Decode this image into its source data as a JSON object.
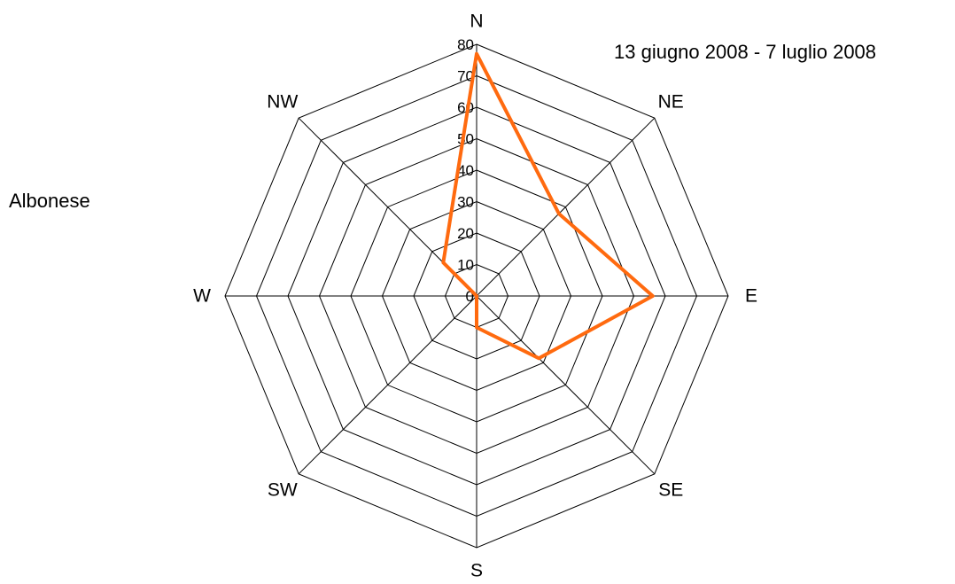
{
  "labels": {
    "site": "Albonese",
    "period": "13 giugno 2008 - 7 luglio 2008"
  },
  "chart_data": {
    "type": "radar",
    "categories": [
      "N",
      "NE",
      "E",
      "SE",
      "S",
      "SW",
      "W",
      "NW"
    ],
    "series": [
      {
        "values": [
          77,
          37,
          56,
          28,
          10,
          0,
          0,
          15
        ],
        "color": "#FF6A0F"
      }
    ],
    "rlim": [
      0,
      80
    ],
    "ticks": [
      0,
      10,
      20,
      30,
      40,
      50,
      60,
      70,
      80
    ],
    "grid": true,
    "grid_color": "#000000"
  }
}
